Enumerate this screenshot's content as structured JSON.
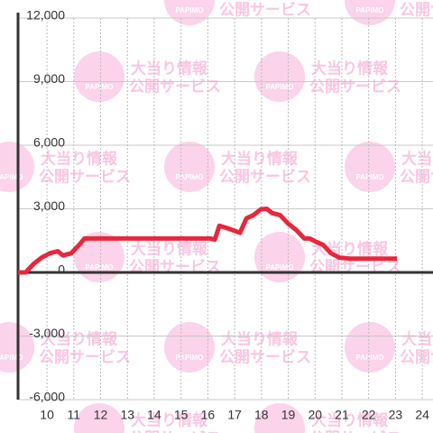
{
  "chart_data": {
    "type": "line",
    "watermark": {
      "line1": "大当り情報",
      "line2": "公開サービス",
      "logo": "PAPIMO"
    },
    "x": [
      8.92,
      9.2,
      9.5,
      9.8,
      10.1,
      10.4,
      10.6,
      10.9,
      11.2,
      11.4,
      11.7,
      12.5,
      13.5,
      14.5,
      15.5,
      16.1,
      16.26,
      16.43,
      16.7,
      17.2,
      17.44,
      17.7,
      17.98,
      18.2,
      18.4,
      18.7,
      19.0,
      19.3,
      19.6,
      19.8,
      20.03,
      20.3,
      20.6,
      20.9,
      21.3,
      22.0,
      23.06
    ],
    "series": [
      {
        "color": "#e8273c",
        "values": [
          0,
          0,
          400,
          700,
          900,
          1000,
          800,
          900,
          1300,
          1600,
          1600,
          1600,
          1600,
          1600,
          1600,
          1600,
          1550,
          2200,
          2100,
          1870,
          2550,
          2700,
          2980,
          3000,
          2800,
          2700,
          2300,
          2000,
          1600,
          1600,
          1450,
          1300,
          900,
          700,
          650,
          650,
          650
        ]
      }
    ],
    "xlim": [
      8.92,
      24.4
    ],
    "ylim": [
      -6000,
      12000
    ],
    "xticks": [
      10,
      11,
      12,
      13,
      14,
      15,
      16,
      17,
      18,
      19,
      20,
      21,
      22,
      23,
      24
    ],
    "yticks": [
      {
        "value": -6000,
        "label": "-6,000"
      },
      {
        "value": -3000,
        "label": "-3,000"
      },
      0,
      {
        "value": 3000,
        "label": "3,000"
      },
      {
        "value": 6000,
        "label": "6,000"
      },
      {
        "value": 9000,
        "label": "9,000"
      },
      {
        "value": 12000,
        "label": "12,000"
      }
    ],
    "grid": true
  }
}
